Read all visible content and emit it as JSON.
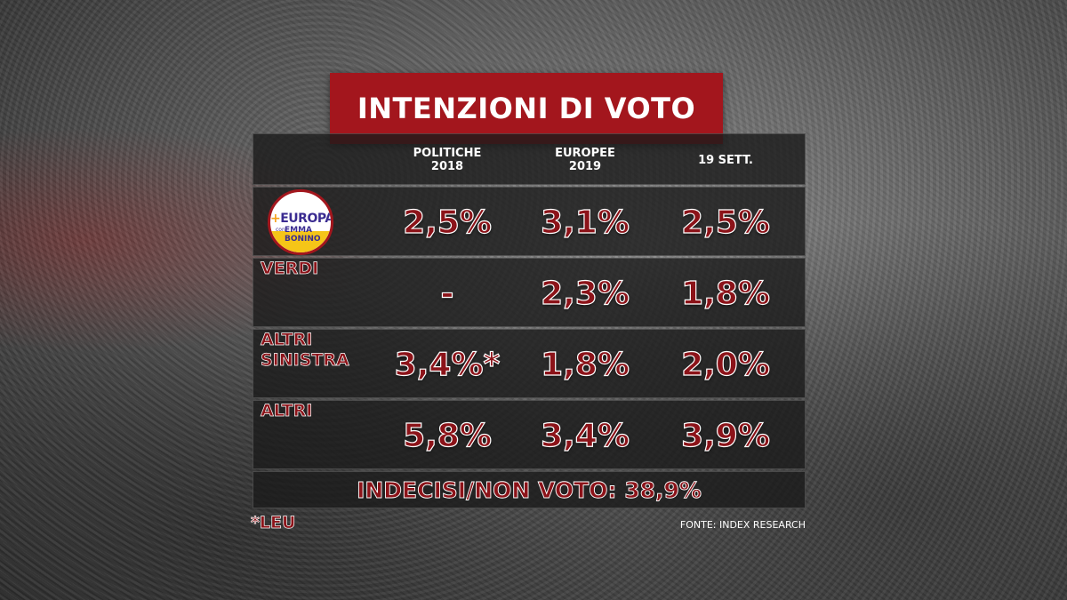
{
  "chart_data": {
    "type": "table",
    "title": "INTENZIONI DI VOTO",
    "columns": [
      "POLITICHE 2018",
      "EUROPEE 2019",
      "19 SETT."
    ],
    "column_lines": [
      [
        "POLITICHE",
        "2018"
      ],
      [
        "EUROPEE",
        "2019"
      ],
      [
        "19 SETT."
      ]
    ],
    "rows": [
      {
        "label_lines": [],
        "logo": "piu-europa-con-emma-bonino-logo",
        "values": [
          "2,5%",
          "3,1%",
          "2,5%"
        ]
      },
      {
        "label_lines": [
          "VERDI"
        ],
        "values": [
          "-",
          "2,3%",
          "1,8%"
        ]
      },
      {
        "label_lines": [
          "ALTRI",
          "SINISTRA"
        ],
        "values": [
          "3,4%*",
          "1,8%",
          "2,0%"
        ]
      },
      {
        "label_lines": [
          "ALTRI"
        ],
        "values": [
          "5,8%",
          "3,4%",
          "3,9%"
        ]
      }
    ],
    "footer": "INDECISI/NON VOTO: 38,9%",
    "note": "*LEU",
    "source": "FONTE: INDEX RESEARCH"
  },
  "logo": {
    "brand_plus": "+",
    "brand_word": "EUROPA",
    "con": "con",
    "name_lines": [
      "EMMA",
      "BONINO"
    ]
  },
  "colors": {
    "title_bg": "#a3161d",
    "value_text": "#8c1319",
    "panel_bg": "#1a1a1a",
    "logo_blue": "#3b2c91",
    "logo_yellow": "#f5c518"
  }
}
